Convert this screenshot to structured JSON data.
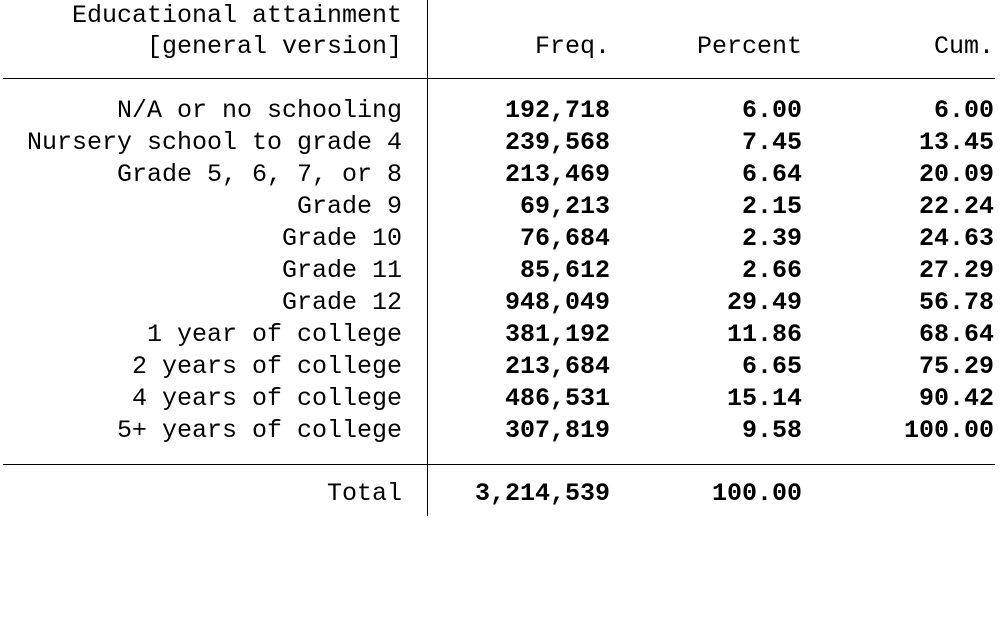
{
  "header": {
    "label_line1": "Educational attainment",
    "label_line2": "[general version]",
    "freq": "Freq.",
    "percent": "Percent",
    "cum": "Cum."
  },
  "rows": [
    {
      "label": "N/A or no schooling",
      "freq": "192,718",
      "percent": "6.00",
      "cum": "6.00"
    },
    {
      "label": "Nursery school to grade 4",
      "freq": "239,568",
      "percent": "7.45",
      "cum": "13.45"
    },
    {
      "label": "Grade 5, 6, 7, or 8",
      "freq": "213,469",
      "percent": "6.64",
      "cum": "20.09"
    },
    {
      "label": "Grade 9",
      "freq": "69,213",
      "percent": "2.15",
      "cum": "22.24"
    },
    {
      "label": "Grade 10",
      "freq": "76,684",
      "percent": "2.39",
      "cum": "24.63"
    },
    {
      "label": "Grade 11",
      "freq": "85,612",
      "percent": "2.66",
      "cum": "27.29"
    },
    {
      "label": "Grade 12",
      "freq": "948,049",
      "percent": "29.49",
      "cum": "56.78"
    },
    {
      "label": "1 year of college",
      "freq": "381,192",
      "percent": "11.86",
      "cum": "68.64"
    },
    {
      "label": "2 years of college",
      "freq": "213,684",
      "percent": "6.65",
      "cum": "75.29"
    },
    {
      "label": "4 years of college",
      "freq": "486,531",
      "percent": "15.14",
      "cum": "90.42"
    },
    {
      "label": "5+ years of college",
      "freq": "307,819",
      "percent": "9.58",
      "cum": "100.00"
    }
  ],
  "total": {
    "label": "Total",
    "freq": "3,214,539",
    "percent": "100.00"
  }
}
